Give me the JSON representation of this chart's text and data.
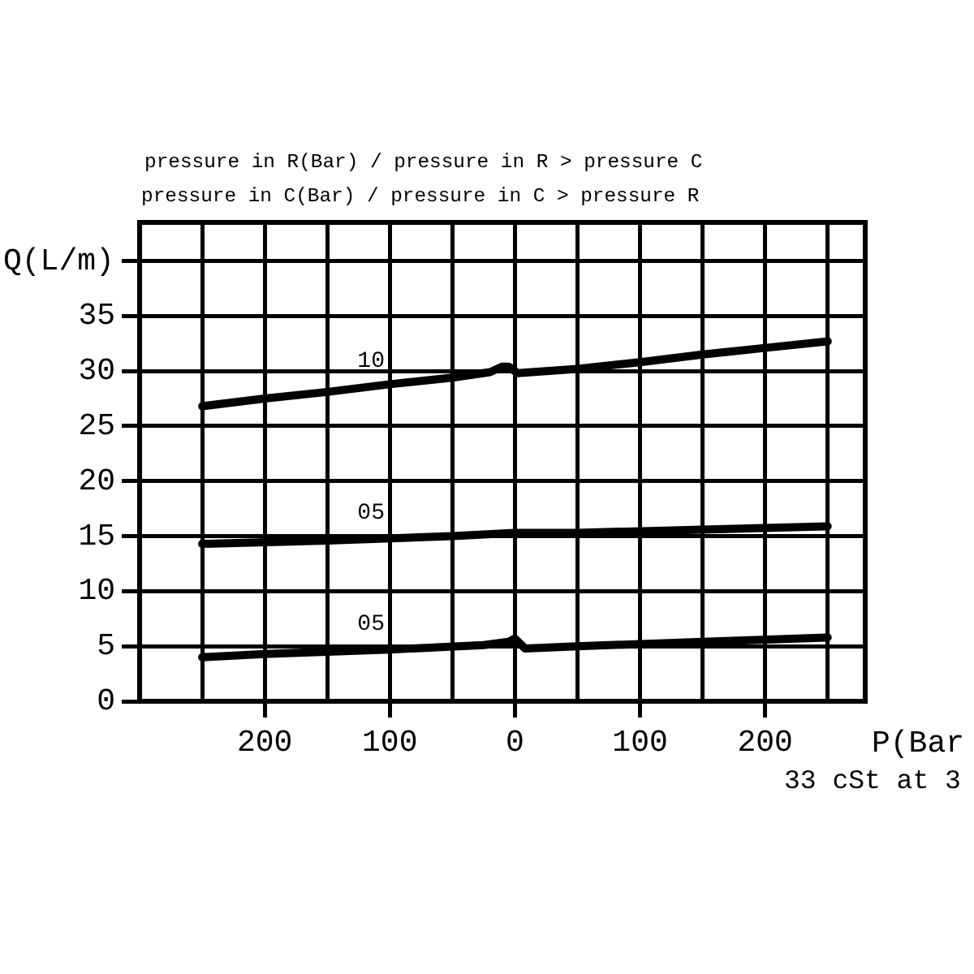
{
  "chart_data": {
    "type": "line",
    "title": "pressure in R(Bar) / pressure in R > pressure C",
    "subtitle": "pressure in C(Bar) / pressure in C > pressure R",
    "xlabel": "P(Bar",
    "ylabel": "Q(L/m)",
    "annotations": [
      "33 cSt at 3"
    ],
    "xlim": [
      -300,
      280
    ],
    "xticks": [
      {
        "value": -250,
        "label": null
      },
      {
        "value": -200,
        "label": "200"
      },
      {
        "value": -150,
        "label": null
      },
      {
        "value": -100,
        "label": "100"
      },
      {
        "value": -50,
        "label": null
      },
      0,
      {
        "value": 50,
        "label": null
      },
      100,
      {
        "value": 150,
        "label": null
      },
      200,
      {
        "value": 250,
        "label": null
      }
    ],
    "ylim": [
      0,
      43.5
    ],
    "yticks": [
      0,
      5,
      10,
      15,
      20,
      25,
      30,
      35,
      {
        "value": 40,
        "label": null
      }
    ],
    "grid": true,
    "legend": false,
    "marker": "none",
    "line_style": "solid",
    "series": [
      {
        "name": "10",
        "color": "#000000",
        "x": [
          -250,
          -200,
          -150,
          -100,
          -50,
          -20,
          -10,
          -5,
          2,
          50,
          100,
          150,
          200,
          250
        ],
        "values": [
          26.8,
          27.5,
          28.1,
          28.8,
          29.4,
          29.9,
          30.4,
          30.4,
          29.8,
          30.2,
          30.8,
          31.5,
          32.1,
          32.7
        ]
      },
      {
        "name": "05",
        "color": "#000000",
        "x": [
          -250,
          -150,
          -50,
          0,
          50,
          150,
          250
        ],
        "values": [
          14.3,
          14.6,
          15.0,
          15.3,
          15.3,
          15.6,
          15.9
        ]
      },
      {
        "name": "05",
        "color": "#000000",
        "x": [
          -250,
          -200,
          -100,
          -25,
          -5,
          0,
          8,
          50,
          150,
          250
        ],
        "values": [
          4.0,
          4.3,
          4.7,
          5.1,
          5.4,
          5.7,
          4.8,
          5.0,
          5.4,
          5.8
        ]
      }
    ]
  }
}
